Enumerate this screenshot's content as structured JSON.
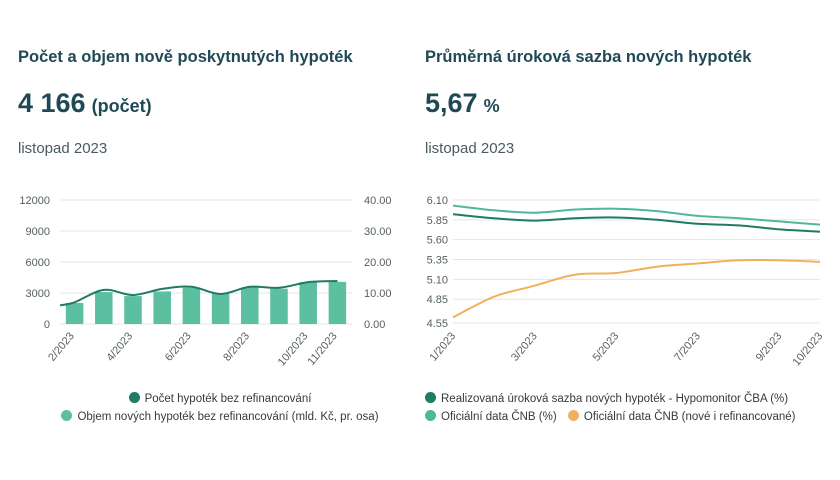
{
  "left": {
    "title": "Počet a objem nově poskytnutých hypoték",
    "value": "4 166",
    "unit": "(počet)",
    "period": "listopad 2023"
  },
  "right": {
    "title": "Průměrná úroková sazba nových hypoték",
    "value": "5,67",
    "unit": "%",
    "period": "listopad 2023"
  },
  "colors": {
    "dark_teal": "#1f7a66",
    "bar_teal": "#5cbf9f",
    "official_teal": "#4fb898",
    "orange": "#f0b15d",
    "grid": "#e3e6e7"
  },
  "chart_data": [
    {
      "type": "bar",
      "categories": [
        "2/2023",
        "3/2023",
        "4/2023",
        "5/2023",
        "6/2023",
        "7/2023",
        "8/2023",
        "9/2023",
        "10/2023",
        "11/2023"
      ],
      "x_tick_labels": [
        "2/2023",
        "4/2023",
        "6/2023",
        "8/2023",
        "10/2023",
        "11/2023"
      ],
      "y_ticks_left": [
        "0",
        "3000",
        "6000",
        "9000",
        "12000"
      ],
      "y_ticks_right": [
        "0.00",
        "10.00",
        "20.00",
        "30.00",
        "40.00"
      ],
      "ylim_left": [
        0,
        12000
      ],
      "ylim_right": [
        0,
        40
      ],
      "series": [
        {
          "name": "Počet hypoték bez refinancování",
          "type": "line",
          "axis": "left",
          "values": [
            2100,
            3300,
            2800,
            3400,
            3600,
            2900,
            3600,
            3500,
            4050,
            4166
          ]
        },
        {
          "name": "Objem nových hypoték bez refinancování (mld. Kč, pr. osa)",
          "type": "bar",
          "axis": "right",
          "values": [
            6.8,
            10.3,
            9.0,
            10.5,
            11.7,
            9.8,
            11.8,
            11.4,
            13.5,
            13.6
          ]
        }
      ],
      "grid": true
    },
    {
      "type": "line",
      "x": [
        "1/2023",
        "2/2023",
        "3/2023",
        "4/2023",
        "5/2023",
        "6/2023",
        "7/2023",
        "8/2023",
        "9/2023",
        "10/2023"
      ],
      "x_tick_labels": [
        "1/2023",
        "3/2023",
        "5/2023",
        "7/2023",
        "9/2023",
        "10/2023"
      ],
      "y_ticks": [
        "4.55",
        "4.85",
        "5.10",
        "5.35",
        "5.60",
        "5.85",
        "6.10"
      ],
      "ylim": [
        4.55,
        6.1
      ],
      "series": [
        {
          "name": "Realizovaná úroková sazba nových hypoték - Hypomonitor ČBA (%)",
          "values": [
            5.92,
            5.87,
            5.84,
            5.87,
            5.88,
            5.85,
            5.8,
            5.78,
            5.73,
            5.7
          ]
        },
        {
          "name": "Oficiální data ČNB (%)",
          "values": [
            6.03,
            5.97,
            5.94,
            5.98,
            5.99,
            5.96,
            5.9,
            5.87,
            5.83,
            5.79
          ]
        },
        {
          "name": "Oficiální data ČNB (nové i refinancované)",
          "values": [
            4.62,
            4.88,
            5.02,
            5.16,
            5.18,
            5.26,
            5.3,
            5.34,
            5.34,
            5.32
          ]
        }
      ],
      "grid": true
    }
  ]
}
